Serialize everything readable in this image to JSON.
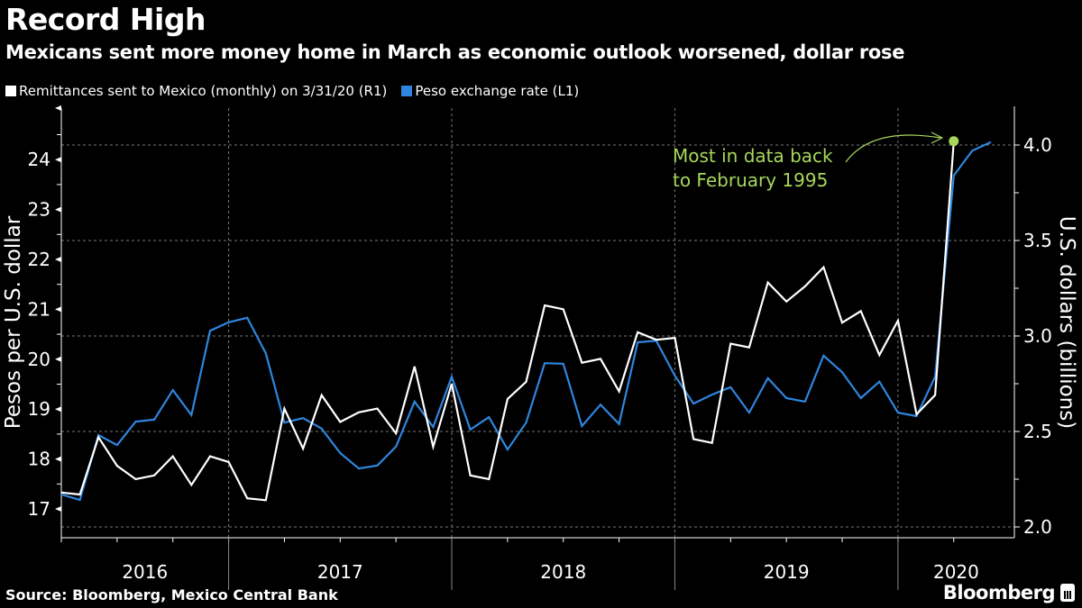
{
  "header": {
    "title": "Record High",
    "subtitle": "Mexicans sent more money home in March as economic outlook worsened, dollar rose"
  },
  "footer": {
    "source": "Source: Bloomberg, Mexico Central Bank",
    "logo": "Bloomberg"
  },
  "chart_data": {
    "type": "line",
    "title": "Record High",
    "subtitle": "Mexicans sent more money home in March as economic outlook worsened, dollar rose",
    "legend_position": "top-left",
    "grid": true,
    "x_start": "2016-04",
    "x_ticks": [
      "2016",
      "2017",
      "2018",
      "2019",
      "2020"
    ],
    "y_left": {
      "label": "Pesos per U.S. dollar",
      "range": [
        16.7,
        25.4
      ],
      "ticks": [
        "17",
        "18",
        "19",
        "20",
        "21",
        "22",
        "23",
        "24"
      ]
    },
    "y_right": {
      "label": "U.S. dollars (billions)",
      "range": [
        1.95,
        4.2
      ],
      "ticks": [
        "2.0",
        "2.5",
        "3.0",
        "3.5",
        "4.0"
      ]
    },
    "series": [
      {
        "name": "Remittances sent to Mexico (monthly) on 3/31/20 (R1)",
        "axis": "right",
        "color": "#ffffff",
        "start": "2016-04",
        "end": "2020-03",
        "values": [
          2.18,
          2.17,
          2.47,
          2.32,
          2.25,
          2.27,
          2.37,
          2.22,
          2.37,
          2.34,
          2.15,
          2.14,
          2.62,
          2.41,
          2.69,
          2.55,
          2.6,
          2.62,
          2.49,
          2.84,
          2.42,
          2.75,
          2.27,
          2.25,
          2.67,
          2.76,
          3.16,
          3.14,
          2.86,
          2.88,
          2.71,
          3.02,
          2.98,
          2.99,
          2.46,
          2.44,
          2.96,
          2.94,
          3.28,
          3.18,
          3.26,
          3.36,
          3.07,
          3.13,
          2.9,
          3.08,
          2.59,
          2.69,
          4.02
        ]
      },
      {
        "name": "Peso exchange rate (L1)",
        "axis": "left",
        "color": "#2e86de",
        "start": "2016-04",
        "end": "2020-05",
        "values": [
          17.29,
          17.18,
          18.48,
          18.28,
          18.75,
          18.79,
          19.38,
          18.88,
          20.57,
          20.74,
          20.83,
          20.12,
          18.73,
          18.82,
          18.61,
          18.12,
          17.81,
          17.87,
          18.25,
          19.15,
          18.64,
          19.65,
          18.59,
          18.84,
          18.19,
          18.73,
          19.92,
          19.91,
          18.66,
          19.09,
          18.7,
          20.34,
          20.37,
          19.67,
          19.11,
          19.29,
          19.44,
          18.93,
          19.62,
          19.22,
          19.15,
          20.07,
          19.74,
          19.22,
          19.55,
          18.93,
          18.86,
          19.65,
          23.68,
          24.18,
          24.35
        ]
      }
    ],
    "annotation": {
      "text_line1": "Most in data back",
      "text_line2": "to February 1995",
      "color": "#a6d75b",
      "points_to": "2020-03"
    }
  }
}
